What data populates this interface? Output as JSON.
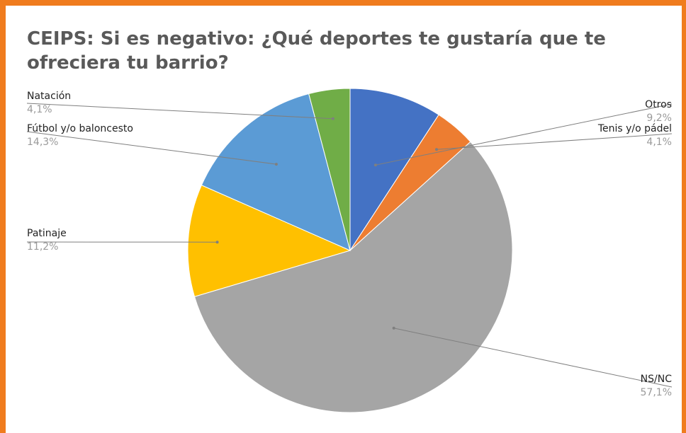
{
  "chart_data": {
    "type": "pie",
    "title": "CEIPS: Si es negativo: ¿Qué deportes te gustaría que te ofreciera tu barrio?",
    "slices": [
      {
        "label": "Otros",
        "value": 9.2,
        "display": "9,2%",
        "color": "#4472c4"
      },
      {
        "label": "Tenis y/o pádel",
        "value": 4.1,
        "display": "4,1%",
        "color": "#ed7d31"
      },
      {
        "label": "NS/NC",
        "value": 57.1,
        "display": "57,1%",
        "color": "#a5a5a5"
      },
      {
        "label": "Patinaje",
        "value": 11.2,
        "display": "11,2%",
        "color": "#ffc000"
      },
      {
        "label": "Fútbol y/o baloncesto",
        "value": 14.3,
        "display": "14,3%",
        "color": "#5b9bd5"
      },
      {
        "label": "Natación",
        "value": 4.1,
        "display": "4,1%",
        "color": "#70ad47"
      }
    ],
    "start_angle_deg": 0,
    "direction": "clockwise",
    "legend": "none",
    "data_labels": "outside with leader lines"
  },
  "colors": {
    "frame_border": "#f07c1e",
    "title_text": "#595959",
    "leader_line": "#7f7f7f"
  }
}
